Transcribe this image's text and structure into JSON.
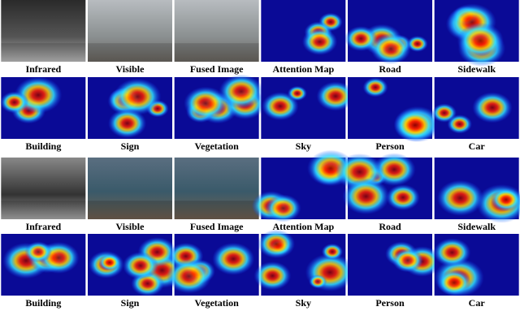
{
  "figure": {
    "rows": [
      {
        "captions": [
          "Infrared",
          "Visible",
          "Fused Image",
          "Attention Map",
          "Road",
          "Sidewalk"
        ]
      },
      {
        "captions": [
          "Building",
          "Sign",
          "Vegetation",
          "Sky",
          "Person",
          "Car"
        ]
      },
      {
        "captions": [
          "Infrared",
          "Visible",
          "Fused Image",
          "Attention Map",
          "Road",
          "Sidewalk"
        ]
      },
      {
        "captions": [
          "Building",
          "Sign",
          "Vegetation",
          "Sky",
          "Person",
          "Car"
        ]
      }
    ]
  }
}
